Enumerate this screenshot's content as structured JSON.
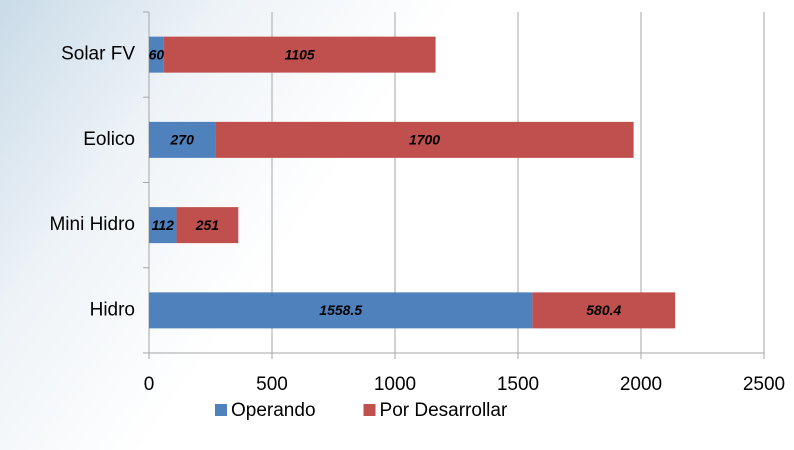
{
  "chart_data": {
    "type": "stacked-bar-horizontal",
    "categories": [
      "Solar FV",
      "Eolico",
      "Mini Hidro",
      "Hidro"
    ],
    "series": [
      {
        "name": "Operando",
        "color": "#4f81bd",
        "values": [
          60,
          270,
          112,
          1558.5
        ]
      },
      {
        "name": "Por Desarrollar",
        "color": "#c0504d",
        "values": [
          1105,
          1700,
          251,
          580.4
        ]
      }
    ],
    "xlim": [
      0,
      2500
    ],
    "xticks": [
      0,
      500,
      1000,
      1500,
      2000,
      2500
    ],
    "grid": true,
    "legend": "bottom"
  }
}
